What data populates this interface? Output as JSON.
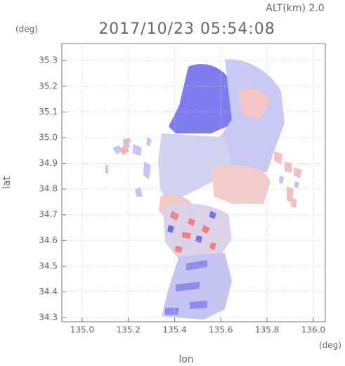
{
  "chart_data": {
    "type": "map",
    "title": "2017/10/23 05:54:08",
    "subtitle": "ALT(km) 2.0",
    "y_unit": "(deg)",
    "x_unit": "(deg)",
    "xlabel": "lon",
    "ylabel": "lat",
    "xlim": [
      134.912,
      136.052
    ],
    "ylim": [
      34.284,
      35.366
    ],
    "xticks": [
      {
        "value": 135.0,
        "label": "135.0"
      },
      135.2,
      135.4,
      135.6,
      135.8,
      {
        "value": 136.0,
        "label": "136.0"
      }
    ],
    "yticks": [
      34.3,
      34.4,
      34.5,
      34.6,
      34.7,
      34.8,
      34.9,
      {
        "value": 35.0,
        "label": "35.0"
      },
      35.1,
      35.2,
      35.3
    ],
    "grid": true
  }
}
